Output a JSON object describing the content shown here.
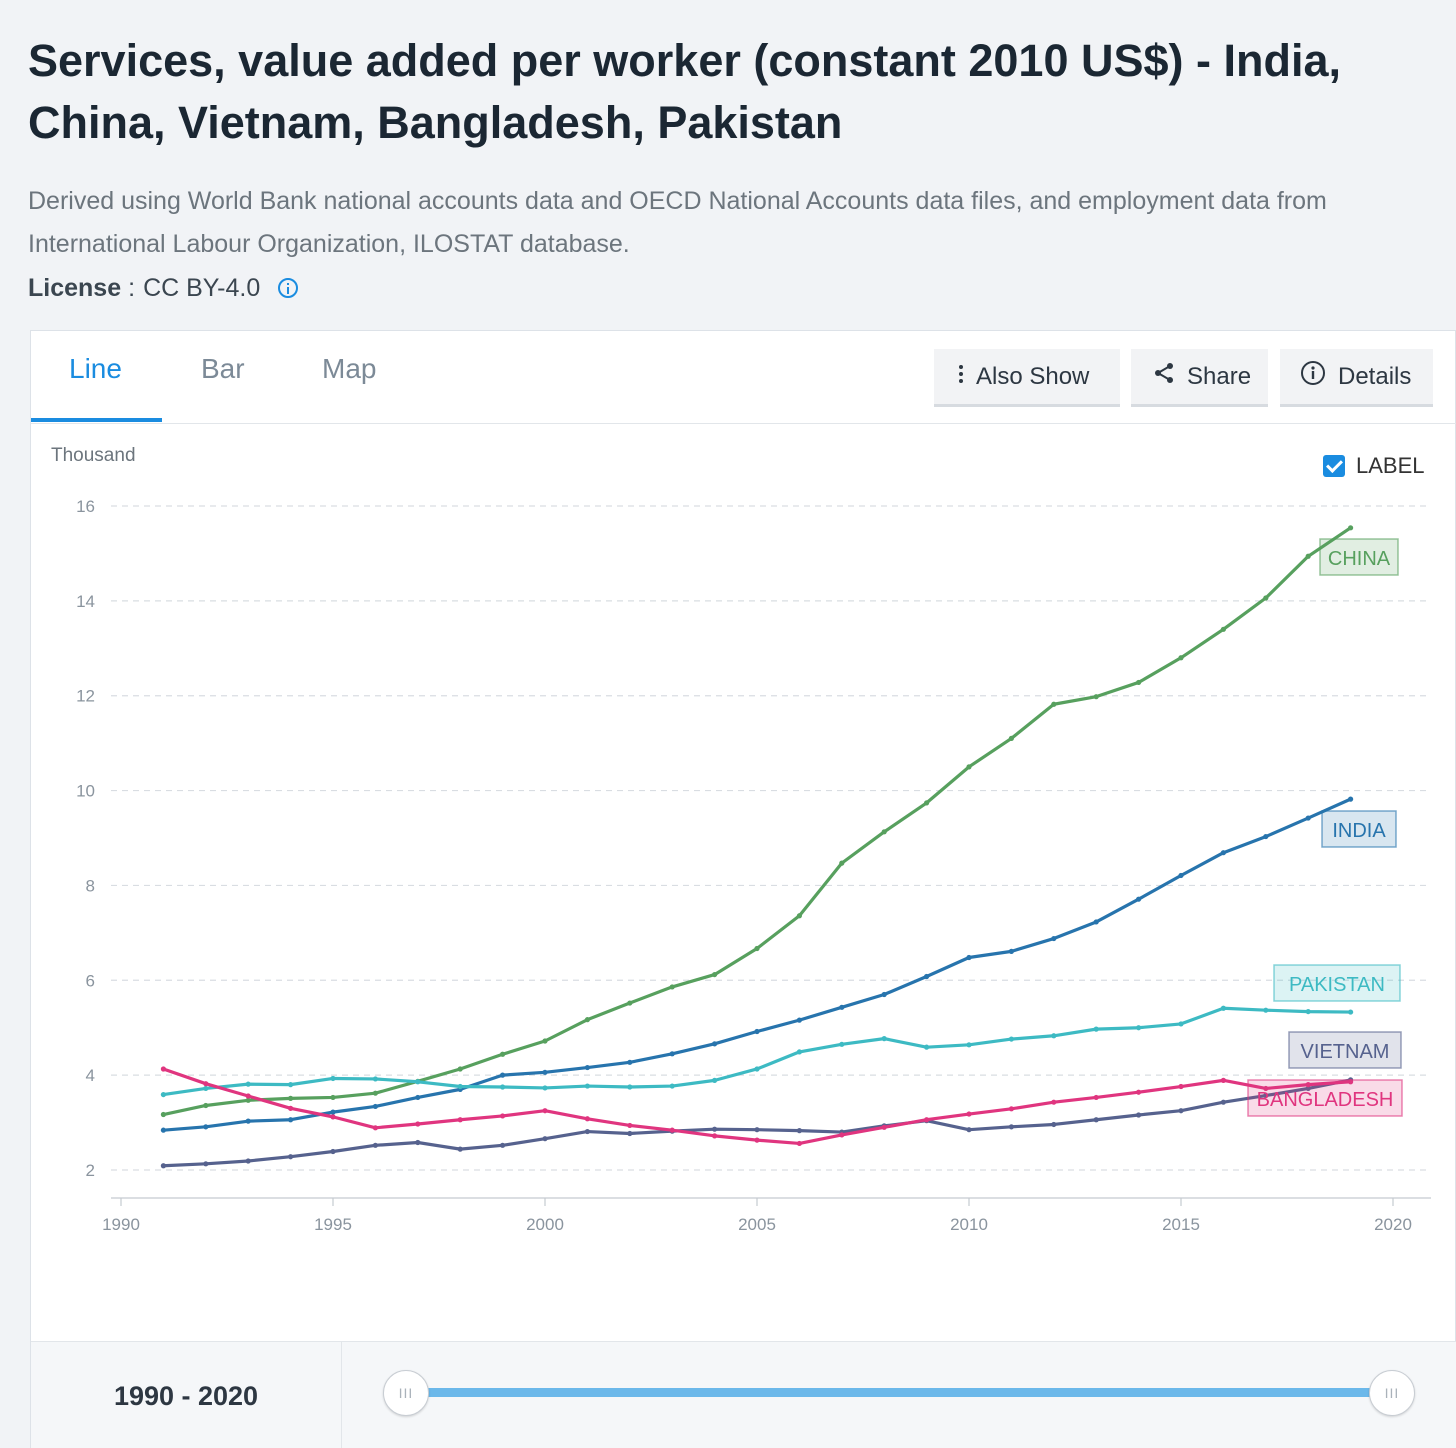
{
  "page": {
    "title": "Services, value added per worker (constant 2010 US$) - India, China, Vietnam, Bangladesh, Pakistan",
    "description": "Derived using World Bank national accounts data and OECD National Accounts data files, and employment data from International Labour Organization, ILOSTAT database.",
    "license_label": "License",
    "license_value": "CC BY-4.0"
  },
  "tabs": [
    {
      "label": "Line",
      "active": true
    },
    {
      "label": "Bar",
      "active": false
    },
    {
      "label": "Map",
      "active": false
    }
  ],
  "toolbar": {
    "also_show_label": "Also Show",
    "share_label": "Share",
    "details_label": "Details"
  },
  "label_toggle": {
    "label": "LABEL",
    "checked": true
  },
  "range": {
    "text": "1990 - 2020",
    "start": 1990,
    "end": 2020
  },
  "colors": {
    "accent": "#1a8ce0",
    "china": "#57a05e",
    "india": "#2774ad",
    "pakistan": "#3dbac3",
    "vietnam": "#56628e",
    "bangladesh": "#e0357f"
  },
  "chart_data": {
    "type": "line",
    "title": "Services, value added per worker (constant 2010 US$) - India, China, Vietnam, Bangladesh, Pakistan",
    "xlabel": "",
    "ylabel": "Thousand",
    "xlim": [
      1990,
      2020
    ],
    "ylim": [
      1.5,
      16.5
    ],
    "x_ticks": [
      1990,
      1995,
      2000,
      2005,
      2010,
      2015,
      2020
    ],
    "y_ticks": [
      2,
      4,
      6,
      8,
      10,
      12,
      14,
      16
    ],
    "grid": true,
    "x": [
      1991,
      1992,
      1993,
      1994,
      1995,
      1996,
      1997,
      1998,
      1999,
      2000,
      2001,
      2002,
      2003,
      2004,
      2005,
      2006,
      2007,
      2008,
      2009,
      2010,
      2011,
      2012,
      2013,
      2014,
      2015,
      2016,
      2017,
      2018,
      2019
    ],
    "series": [
      {
        "name": "CHINA",
        "color": "#57a05e",
        "values": [
          3.17,
          3.36,
          3.47,
          3.51,
          3.53,
          3.62,
          3.87,
          4.13,
          4.44,
          4.72,
          5.17,
          5.52,
          5.86,
          6.12,
          6.67,
          7.36,
          8.47,
          9.13,
          9.74,
          10.5,
          11.1,
          11.82,
          11.98,
          12.28,
          12.8,
          13.4,
          14.06,
          14.94,
          15.54
        ]
      },
      {
        "name": "INDIA",
        "color": "#2774ad",
        "values": [
          2.84,
          2.91,
          3.03,
          3.06,
          3.22,
          3.34,
          3.53,
          3.7,
          4.0,
          4.06,
          4.16,
          4.27,
          4.45,
          4.66,
          4.92,
          5.16,
          5.43,
          5.7,
          6.08,
          6.48,
          6.61,
          6.88,
          7.23,
          7.71,
          8.21,
          8.69,
          9.03,
          9.42,
          9.82
        ]
      },
      {
        "name": "PAKISTAN",
        "color": "#3dbac3",
        "values": [
          3.59,
          3.72,
          3.81,
          3.8,
          3.93,
          3.92,
          3.86,
          3.76,
          3.75,
          3.73,
          3.77,
          3.75,
          3.77,
          3.89,
          4.13,
          4.49,
          4.65,
          4.77,
          4.59,
          4.64,
          4.76,
          4.83,
          4.97,
          5.0,
          5.08,
          5.41,
          5.37,
          5.34,
          5.33
        ]
      },
      {
        "name": "VIETNAM",
        "color": "#56628e",
        "values": [
          2.09,
          2.13,
          2.19,
          2.28,
          2.39,
          2.52,
          2.58,
          2.44,
          2.52,
          2.66,
          2.81,
          2.77,
          2.82,
          2.86,
          2.85,
          2.83,
          2.8,
          2.93,
          3.04,
          2.85,
          2.91,
          2.96,
          3.06,
          3.16,
          3.25,
          3.43,
          3.57,
          3.72,
          3.9
        ]
      },
      {
        "name": "BANGLADESH",
        "color": "#e0357f",
        "values": [
          4.13,
          3.82,
          3.56,
          3.3,
          3.12,
          2.89,
          2.97,
          3.06,
          3.14,
          3.25,
          3.08,
          2.94,
          2.84,
          2.72,
          2.63,
          2.56,
          2.74,
          2.9,
          3.06,
          3.18,
          3.29,
          3.43,
          3.53,
          3.64,
          3.76,
          3.89,
          3.72,
          3.8,
          3.86
        ]
      }
    ]
  }
}
